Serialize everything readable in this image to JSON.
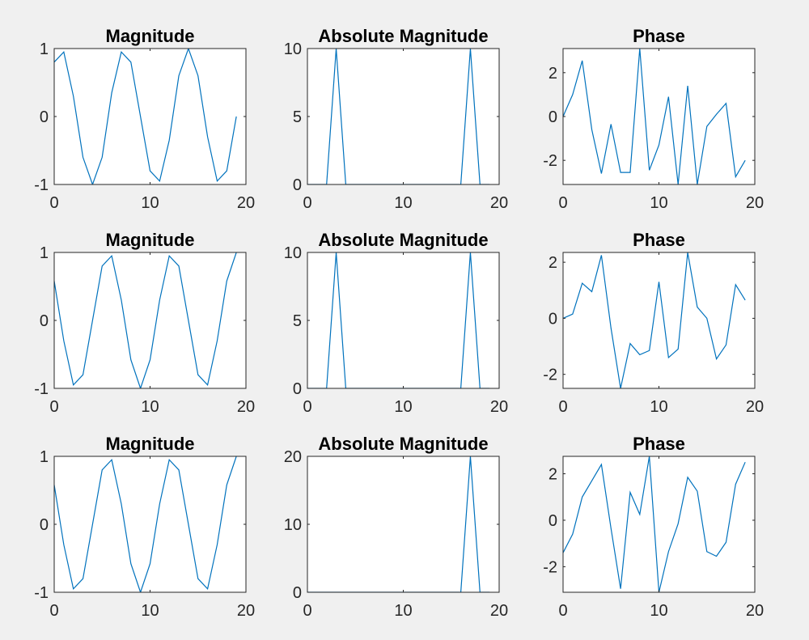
{
  "figure": {
    "background": "#f0f0f0",
    "axes_background": "#ffffff",
    "line_color": "#0072bd",
    "axis_color": "#262626"
  },
  "chart_data": [
    {
      "type": "line",
      "title": "Magnitude",
      "xlim": [
        0,
        20
      ],
      "ylim": [
        -1,
        1
      ],
      "xticks": [
        0,
        10,
        20
      ],
      "yticks": [
        -1,
        0,
        1
      ],
      "x": [
        0,
        1,
        2,
        3,
        4,
        5,
        6,
        7,
        8,
        9,
        10,
        11,
        12,
        13,
        14,
        15,
        16,
        17,
        18,
        19
      ],
      "series": [
        {
          "values": [
            0.8,
            0.95,
            0.3,
            -0.6,
            -1.0,
            -0.6,
            0.35,
            0.95,
            0.8,
            0.0,
            -0.8,
            -0.95,
            -0.35,
            0.6,
            1.0,
            0.6,
            -0.3,
            -0.95,
            -0.8,
            0.0
          ]
        }
      ]
    },
    {
      "type": "line",
      "title": "Absolute Magnitude",
      "xlim": [
        0,
        20
      ],
      "ylim": [
        0,
        10
      ],
      "xticks": [
        0,
        10,
        20
      ],
      "yticks": [
        0,
        5,
        10
      ],
      "x": [
        0,
        1,
        2,
        3,
        4,
        5,
        6,
        7,
        8,
        9,
        10,
        11,
        12,
        13,
        14,
        15,
        16,
        17,
        18,
        19
      ],
      "series": [
        {
          "values": [
            0,
            0,
            0,
            10,
            0,
            0,
            0,
            0,
            0,
            0,
            0,
            0,
            0,
            0,
            0,
            0,
            0,
            10,
            0,
            0
          ]
        }
      ]
    },
    {
      "type": "line",
      "title": "Phase",
      "xlim": [
        0,
        20
      ],
      "ylim": [
        -3.1,
        3.1
      ],
      "xticks": [
        0,
        10,
        20
      ],
      "yticks": [
        -2,
        0,
        2
      ],
      "x": [
        0,
        1,
        2,
        3,
        4,
        5,
        6,
        7,
        8,
        9,
        10,
        11,
        12,
        13,
        14,
        15,
        16,
        17,
        18,
        19
      ],
      "series": [
        {
          "values": [
            0.0,
            1.0,
            2.55,
            -0.6,
            -2.6,
            -0.35,
            -2.55,
            -2.55,
            3.1,
            -2.45,
            -1.3,
            0.9,
            -3.1,
            1.4,
            -3.1,
            -0.45,
            0.1,
            0.6,
            -2.75,
            -2.0
          ]
        }
      ]
    },
    {
      "type": "line",
      "title": "Magnitude",
      "xlim": [
        0,
        20
      ],
      "ylim": [
        -1,
        1
      ],
      "xticks": [
        0,
        10,
        20
      ],
      "yticks": [
        -1,
        0,
        1
      ],
      "x": [
        0,
        1,
        2,
        3,
        4,
        5,
        6,
        7,
        8,
        9,
        10,
        11,
        12,
        13,
        14,
        15,
        16,
        17,
        18,
        19
      ],
      "series": [
        {
          "values": [
            0.58,
            -0.3,
            -0.95,
            -0.8,
            0.0,
            0.8,
            0.95,
            0.3,
            -0.58,
            -1.0,
            -0.58,
            0.3,
            0.95,
            0.8,
            0.0,
            -0.8,
            -0.95,
            -0.3,
            0.58,
            1.0
          ]
        }
      ]
    },
    {
      "type": "line",
      "title": "Absolute Magnitude",
      "xlim": [
        0,
        20
      ],
      "ylim": [
        0,
        10
      ],
      "xticks": [
        0,
        10,
        20
      ],
      "yticks": [
        0,
        5,
        10
      ],
      "x": [
        0,
        1,
        2,
        3,
        4,
        5,
        6,
        7,
        8,
        9,
        10,
        11,
        12,
        13,
        14,
        15,
        16,
        17,
        18,
        19
      ],
      "series": [
        {
          "values": [
            0,
            0,
            0,
            10,
            0,
            0,
            0,
            0,
            0,
            0,
            0,
            0,
            0,
            0,
            0,
            0,
            0,
            10,
            0,
            0
          ]
        }
      ]
    },
    {
      "type": "line",
      "title": "Phase",
      "xlim": [
        0,
        20
      ],
      "ylim": [
        -2.5,
        2.35
      ],
      "xticks": [
        0,
        10,
        20
      ],
      "yticks": [
        -2,
        0,
        2
      ],
      "x": [
        0,
        1,
        2,
        3,
        4,
        5,
        6,
        7,
        8,
        9,
        10,
        11,
        12,
        13,
        14,
        15,
        16,
        17,
        18,
        19
      ],
      "series": [
        {
          "values": [
            0.0,
            0.15,
            1.25,
            0.95,
            2.25,
            -0.35,
            -2.5,
            -0.9,
            -1.3,
            -1.15,
            1.3,
            -1.4,
            -1.1,
            2.35,
            0.4,
            0.0,
            -1.45,
            -0.95,
            1.2,
            0.65
          ]
        }
      ]
    },
    {
      "type": "line",
      "title": "Magnitude",
      "xlim": [
        0,
        20
      ],
      "ylim": [
        -1,
        1
      ],
      "xticks": [
        0,
        10,
        20
      ],
      "yticks": [
        -1,
        0,
        1
      ],
      "x": [
        0,
        1,
        2,
        3,
        4,
        5,
        6,
        7,
        8,
        9,
        10,
        11,
        12,
        13,
        14,
        15,
        16,
        17,
        18,
        19
      ],
      "series": [
        {
          "values": [
            0.58,
            -0.3,
            -0.95,
            -0.8,
            0.0,
            0.8,
            0.95,
            0.3,
            -0.58,
            -1.0,
            -0.58,
            0.3,
            0.95,
            0.8,
            0.0,
            -0.8,
            -0.95,
            -0.3,
            0.58,
            1.0
          ]
        }
      ]
    },
    {
      "type": "line",
      "title": "Absolute Magnitude",
      "xlim": [
        0,
        20
      ],
      "ylim": [
        0,
        20
      ],
      "xticks": [
        0,
        10,
        20
      ],
      "yticks": [
        0,
        10,
        20
      ],
      "x": [
        0,
        1,
        2,
        3,
        4,
        5,
        6,
        7,
        8,
        9,
        10,
        11,
        12,
        13,
        14,
        15,
        16,
        17,
        18,
        19
      ],
      "series": [
        {
          "values": [
            0,
            0,
            0,
            0,
            0,
            0,
            0,
            0,
            0,
            0,
            0,
            0,
            0,
            0,
            0,
            0,
            0,
            20,
            0,
            0
          ]
        }
      ]
    },
    {
      "type": "line",
      "title": "Phase",
      "xlim": [
        0,
        20
      ],
      "ylim": [
        -3.1,
        2.75
      ],
      "xticks": [
        0,
        10,
        20
      ],
      "yticks": [
        -2,
        0,
        2
      ],
      "x": [
        0,
        1,
        2,
        3,
        4,
        5,
        6,
        7,
        8,
        9,
        10,
        11,
        12,
        13,
        14,
        15,
        16,
        17,
        18,
        19
      ],
      "series": [
        {
          "values": [
            -1.4,
            -0.6,
            1.0,
            1.7,
            2.4,
            -0.35,
            -2.95,
            1.2,
            0.25,
            2.75,
            -3.1,
            -1.35,
            -0.15,
            1.85,
            1.25,
            -1.35,
            -1.55,
            -0.95,
            1.55,
            2.5
          ]
        }
      ]
    }
  ]
}
